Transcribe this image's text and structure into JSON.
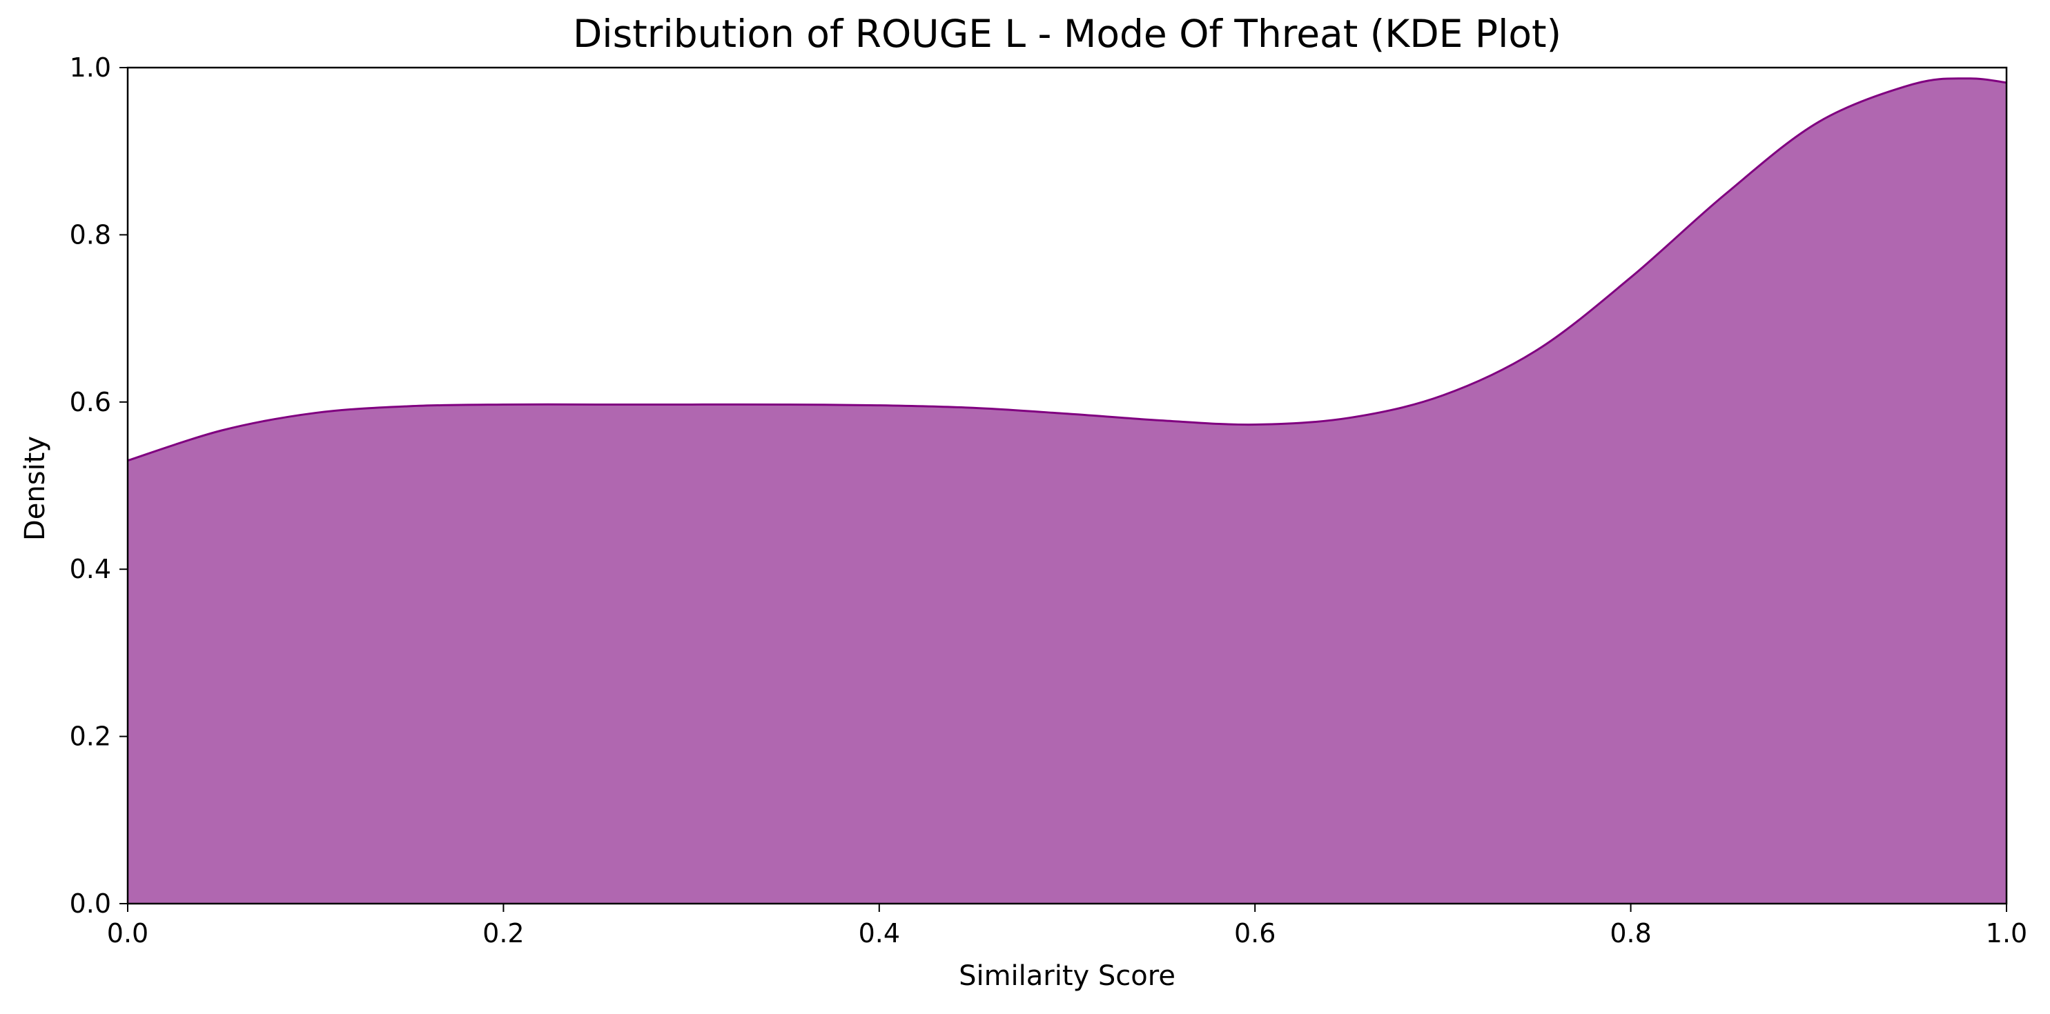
{
  "chart_data": {
    "type": "area",
    "title": "Distribution of ROUGE L - Mode Of Threat (KDE Plot)",
    "xlabel": "Similarity Score",
    "ylabel": "Density",
    "xlim": [
      0.0,
      1.0
    ],
    "ylim": [
      0.0,
      1.0
    ],
    "x_ticks": [
      "0.0",
      "0.2",
      "0.4",
      "0.6",
      "0.8",
      "1.0"
    ],
    "y_ticks": [
      "0.0",
      "0.2",
      "0.4",
      "0.6",
      "0.8",
      "1.0"
    ],
    "grid": false,
    "legend": "none",
    "fill_color": "#b067b0",
    "line_color": "#800080",
    "series": [
      {
        "x": [
          0.0,
          0.05,
          0.1,
          0.15,
          0.2,
          0.25,
          0.3,
          0.35,
          0.4,
          0.45,
          0.5,
          0.55,
          0.6,
          0.65,
          0.7,
          0.75,
          0.8,
          0.85,
          0.9,
          0.95,
          0.98,
          1.0
        ],
        "y": [
          0.53,
          0.566,
          0.587,
          0.595,
          0.597,
          0.597,
          0.597,
          0.597,
          0.596,
          0.593,
          0.586,
          0.578,
          0.573,
          0.581,
          0.608,
          0.662,
          0.749,
          0.848,
          0.935,
          0.98,
          0.987,
          0.982
        ]
      }
    ]
  }
}
